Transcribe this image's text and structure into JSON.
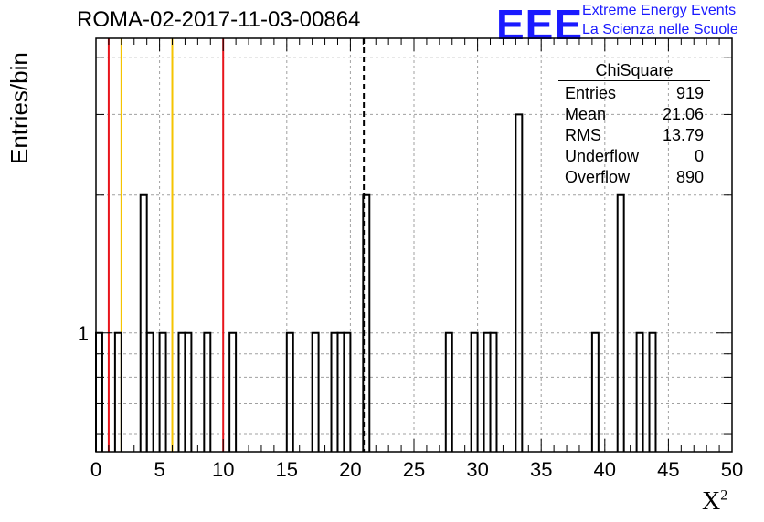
{
  "title": "ROMA-02-2017-11-03-00864",
  "logo": {
    "mark": "EEE",
    "line1": "Extreme Energy Events",
    "line2": "La Scienza nelle Scuole"
  },
  "stats": {
    "name": "ChiSquare",
    "rows": [
      {
        "label": "Entries",
        "value": "919"
      },
      {
        "label": "Mean",
        "value": "21.06"
      },
      {
        "label": "RMS",
        "value": "13.79"
      },
      {
        "label": "Underflow",
        "value": "0"
      },
      {
        "label": "Overflow",
        "value": "890"
      }
    ]
  },
  "chart_data": {
    "type": "histogram",
    "ylabel": "Entries/bin",
    "xlabel_base": "X",
    "xlabel_sup": "2",
    "xlim": [
      0,
      50
    ],
    "ylim": [
      0.55,
      4.4
    ],
    "yscale": "log",
    "grid": true,
    "bin_width": 0.5,
    "x_ticks": [
      "0",
      "5",
      "10",
      "15",
      "20",
      "25",
      "30",
      "35",
      "40",
      "45",
      "50"
    ],
    "y_tick_labels": [
      {
        "value": 1,
        "label": "1"
      }
    ],
    "bins": [
      {
        "x": 0.0,
        "count": 1
      },
      {
        "x": 1.5,
        "count": 1
      },
      {
        "x": 3.5,
        "count": 2
      },
      {
        "x": 4.0,
        "count": 1
      },
      {
        "x": 5.0,
        "count": 1
      },
      {
        "x": 6.5,
        "count": 1
      },
      {
        "x": 7.0,
        "count": 1
      },
      {
        "x": 8.5,
        "count": 1
      },
      {
        "x": 10.5,
        "count": 1
      },
      {
        "x": 15.0,
        "count": 1
      },
      {
        "x": 17.0,
        "count": 1
      },
      {
        "x": 18.5,
        "count": 1
      },
      {
        "x": 19.0,
        "count": 1
      },
      {
        "x": 19.5,
        "count": 1
      },
      {
        "x": 21.0,
        "count": 2
      },
      {
        "x": 27.5,
        "count": 1
      },
      {
        "x": 29.5,
        "count": 1
      },
      {
        "x": 30.5,
        "count": 1
      },
      {
        "x": 31.0,
        "count": 1
      },
      {
        "x": 33.0,
        "count": 3
      },
      {
        "x": 39.0,
        "count": 1
      },
      {
        "x": 41.0,
        "count": 2
      },
      {
        "x": 42.5,
        "count": 1
      },
      {
        "x": 43.5,
        "count": 1
      }
    ],
    "reference_lines": [
      {
        "x": 1.0,
        "color": "#e8141b",
        "style": "solid"
      },
      {
        "x": 2.0,
        "color": "#f5c400",
        "style": "solid"
      },
      {
        "x": 6.0,
        "color": "#f5c400",
        "style": "solid"
      },
      {
        "x": 10.0,
        "color": "#e8141b",
        "style": "solid"
      },
      {
        "x": 21.06,
        "color": "#000000",
        "style": "dashed"
      }
    ]
  }
}
